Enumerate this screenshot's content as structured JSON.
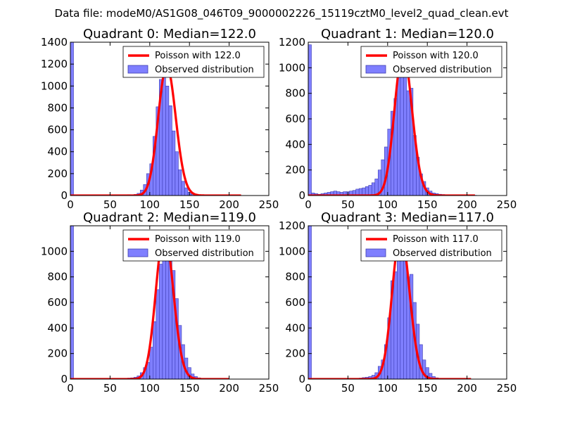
{
  "figure": {
    "suptitle": "Data file: modeM0/AS1G08_046T09_9000002226_15119cztM0_level2_quad_clean.evt"
  },
  "style": {
    "bar_fill": "#7f7fff",
    "bar_edge": "#3b3bb0",
    "fit_line": "#ff0000"
  },
  "chart_data": [
    {
      "type": "bar",
      "title": "Quadrant 0: Median=122.0",
      "xlim": [
        0,
        250
      ],
      "ylim": [
        0,
        1400
      ],
      "xticks": [
        "0",
        "50",
        "100",
        "150",
        "200",
        "250"
      ],
      "yticks": [
        "0",
        "200",
        "400",
        "600",
        "800",
        "1000",
        "1200",
        "1400"
      ],
      "bin_width": 4,
      "bins": [
        0,
        68,
        72,
        76,
        80,
        84,
        88,
        92,
        96,
        100,
        104,
        108,
        112,
        116,
        120,
        124,
        128,
        132,
        136,
        140,
        144,
        148,
        152,
        156
      ],
      "counts": [
        1400,
        3,
        8,
        5,
        10,
        20,
        50,
        100,
        200,
        290,
        540,
        810,
        1060,
        1160,
        1000,
        820,
        590,
        400,
        235,
        130,
        70,
        30,
        12,
        5
      ],
      "poisson_mean": 122.0,
      "poisson_peak": 1180,
      "fit_range": [
        0,
        215
      ],
      "legend": {
        "line": "Poisson with 122.0",
        "bars": "Observed distribution",
        "placement": "upper right"
      }
    },
    {
      "type": "bar",
      "title": "Quadrant 1: Median=120.0",
      "xlim": [
        0,
        250
      ],
      "ylim": [
        0,
        1200
      ],
      "xticks": [
        "0",
        "50",
        "100",
        "150",
        "200",
        "250"
      ],
      "yticks": [
        "0",
        "200",
        "400",
        "600",
        "800",
        "1000",
        "1200"
      ],
      "bin_width": 4,
      "bins": [
        0,
        4,
        8,
        12,
        16,
        20,
        24,
        28,
        32,
        36,
        40,
        44,
        48,
        52,
        56,
        60,
        64,
        68,
        72,
        76,
        80,
        84,
        88,
        92,
        96,
        100,
        104,
        108,
        112,
        116,
        120,
        124,
        128,
        132,
        136,
        140,
        144,
        148,
        152,
        156,
        160,
        164,
        168,
        172,
        176,
        180,
        184,
        188,
        192,
        196,
        200,
        204,
        208
      ],
      "counts": [
        1180,
        20,
        15,
        10,
        15,
        20,
        25,
        30,
        35,
        30,
        25,
        30,
        30,
        35,
        40,
        50,
        55,
        60,
        70,
        80,
        100,
        130,
        200,
        280,
        380,
        520,
        660,
        760,
        940,
        1140,
        1060,
        820,
        840,
        470,
        300,
        170,
        110,
        60,
        35,
        20,
        15,
        10,
        8,
        6,
        5,
        5,
        4,
        3,
        3,
        3,
        2,
        2,
        2
      ],
      "poisson_mean": 120.0,
      "poisson_peak": 1120,
      "fit_range": [
        0,
        210
      ],
      "legend": {
        "line": "Poisson with 120.0",
        "bars": "Observed distribution",
        "placement": "upper right"
      }
    },
    {
      "type": "bar",
      "title": "Quadrant 2: Median=119.0",
      "xlim": [
        0,
        250
      ],
      "ylim": [
        0,
        1200
      ],
      "xticks": [
        "0",
        "50",
        "100",
        "150",
        "200",
        "250"
      ],
      "yticks": [
        "0",
        "200",
        "400",
        "600",
        "800",
        "1000"
      ],
      "bin_width": 4,
      "bins": [
        0,
        64,
        68,
        72,
        76,
        80,
        84,
        88,
        92,
        96,
        100,
        104,
        108,
        112,
        116,
        120,
        124,
        128,
        132,
        136,
        140,
        144,
        148,
        152,
        156,
        160,
        164
      ],
      "counts": [
        1200,
        3,
        5,
        8,
        10,
        15,
        25,
        50,
        90,
        130,
        250,
        450,
        700,
        900,
        1100,
        1000,
        1000,
        850,
        630,
        420,
        270,
        165,
        90,
        40,
        20,
        10,
        5
      ],
      "poisson_mean": 119.0,
      "poisson_peak": 1150,
      "fit_range": [
        0,
        200
      ],
      "legend": {
        "line": "Poisson with 119.0",
        "bars": "Observed distribution",
        "placement": "upper right"
      }
    },
    {
      "type": "bar",
      "title": "Quadrant 3: Median=117.0",
      "xlim": [
        0,
        250
      ],
      "ylim": [
        0,
        1200
      ],
      "xticks": [
        "0",
        "50",
        "100",
        "150",
        "200",
        "250"
      ],
      "yticks": [
        "0",
        "200",
        "400",
        "600",
        "800",
        "1000",
        "1200"
      ],
      "bin_width": 4,
      "bins": [
        0,
        60,
        64,
        68,
        72,
        76,
        80,
        84,
        88,
        92,
        96,
        100,
        104,
        108,
        112,
        116,
        120,
        124,
        128,
        132,
        136,
        140,
        144,
        148,
        152,
        156,
        160,
        164
      ],
      "counts": [
        1200,
        5,
        8,
        12,
        15,
        20,
        30,
        50,
        100,
        150,
        270,
        480,
        770,
        840,
        1060,
        1110,
        1000,
        800,
        820,
        600,
        430,
        270,
        150,
        90,
        45,
        20,
        10,
        5
      ],
      "poisson_mean": 117.0,
      "poisson_peak": 1140,
      "fit_range": [
        0,
        205
      ],
      "legend": {
        "line": "Poisson with 117.0",
        "bars": "Observed distribution",
        "placement": "upper right"
      }
    }
  ]
}
